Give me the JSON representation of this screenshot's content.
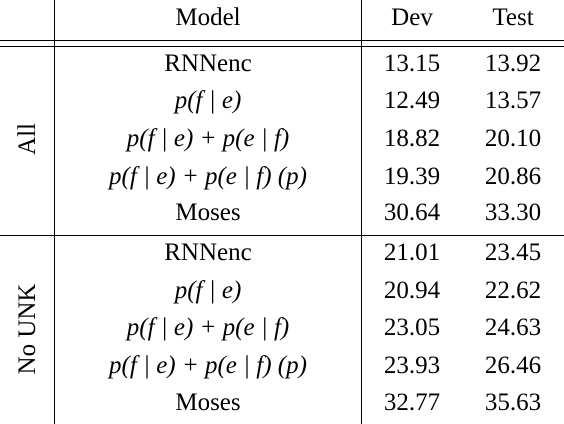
{
  "header": {
    "group": "",
    "model": "Model",
    "dev": "Dev",
    "test": "Test"
  },
  "groups": [
    {
      "label": "All",
      "rows": [
        {
          "model": "RNNenc",
          "dev": "13.15",
          "test": "13.92"
        },
        {
          "model": "p(f | e)",
          "dev": "12.49",
          "test": "13.57"
        },
        {
          "model": "p(f | e) + p(e | f)",
          "dev": "18.82",
          "test": "20.10"
        },
        {
          "model": "p(f | e) + p(e | f) (p)",
          "dev": "19.39",
          "test": "20.86"
        },
        {
          "model": "Moses",
          "dev": "30.64",
          "test": "33.30"
        }
      ]
    },
    {
      "label": "No UNK",
      "rows": [
        {
          "model": "RNNenc",
          "dev": "21.01",
          "test": "23.45"
        },
        {
          "model": "p(f | e)",
          "dev": "20.94",
          "test": "22.62"
        },
        {
          "model": "p(f | e) + p(e | f)",
          "dev": "23.05",
          "test": "24.63"
        },
        {
          "model": "p(f | e) + p(e | f) (p)",
          "dev": "23.93",
          "test": "26.46"
        },
        {
          "model": "Moses",
          "dev": "32.77",
          "test": "35.63"
        }
      ]
    }
  ]
}
